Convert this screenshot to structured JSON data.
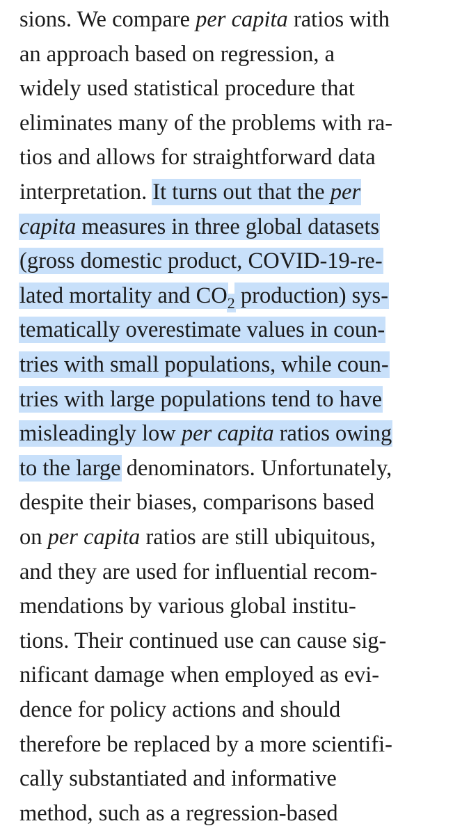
{
  "document": {
    "lines": [
      {
        "segments": [
          {
            "text": "sions. We compare "
          },
          {
            "text": "per capita",
            "italic": true
          },
          {
            "text": " ratios with"
          }
        ]
      },
      {
        "segments": [
          {
            "text": "an approach based on regression, a"
          }
        ]
      },
      {
        "segments": [
          {
            "text": "widely used statistical procedure that"
          }
        ]
      },
      {
        "segments": [
          {
            "text": "eliminates many of the problems with ra-"
          }
        ]
      },
      {
        "segments": [
          {
            "text": "tios and allows for straightforward data"
          }
        ]
      },
      {
        "segments": [
          {
            "text": "interpretation. "
          },
          {
            "text": "It turns out that the ",
            "hl": true
          },
          {
            "text": "per",
            "italic": true,
            "hl": true
          }
        ]
      },
      {
        "segments": [
          {
            "text": "capita",
            "italic": true,
            "hl": true
          },
          {
            "text": " measures in three global datasets",
            "hl": true
          }
        ]
      },
      {
        "segments": [
          {
            "text": "(gross domestic product, COVID-19-re-",
            "hl": true
          }
        ]
      },
      {
        "segments": [
          {
            "text": "lated mortality and CO",
            "hl": true
          },
          {
            "text": "2",
            "sub": true,
            "hl": true
          },
          {
            "text": " production) sys-",
            "hl": true
          }
        ]
      },
      {
        "segments": [
          {
            "text": "tematically overestimate values in coun-",
            "hl": true
          }
        ]
      },
      {
        "segments": [
          {
            "text": "tries with small populations, while coun-",
            "hl": true
          }
        ]
      },
      {
        "segments": [
          {
            "text": "tries with large populations tend to have",
            "hl": true
          }
        ]
      },
      {
        "segments": [
          {
            "text": "misleadingly low ",
            "hl": true
          },
          {
            "text": "per capita",
            "italic": true,
            "hl": true
          },
          {
            "text": " ratios owing",
            "hl": true
          }
        ]
      },
      {
        "segments": [
          {
            "text": "to the large",
            "hl": true
          },
          {
            "text": " denominators. Unfortunately,"
          }
        ]
      },
      {
        "segments": [
          {
            "text": "despite their biases, comparisons based"
          }
        ]
      },
      {
        "segments": [
          {
            "text": "on "
          },
          {
            "text": "per capita",
            "italic": true
          },
          {
            "text": " ratios are still ubiquitous,"
          }
        ]
      },
      {
        "segments": [
          {
            "text": "and they are used for influential recom-"
          }
        ]
      },
      {
        "segments": [
          {
            "text": "mendations by various global institu-"
          }
        ]
      },
      {
        "segments": [
          {
            "text": "tions. Their continued use can cause sig-"
          }
        ]
      },
      {
        "segments": [
          {
            "text": "nificant damage when employed as evi-"
          }
        ]
      },
      {
        "segments": [
          {
            "text": "dence for policy actions and should"
          }
        ]
      },
      {
        "segments": [
          {
            "text": "therefore be replaced by a more scientifi-"
          }
        ]
      },
      {
        "segments": [
          {
            "text": "cally substantiated and informative"
          }
        ]
      },
      {
        "segments": [
          {
            "text": "method, such as a regression-based"
          }
        ]
      }
    ]
  },
  "colors": {
    "text": "#1b1b1b",
    "highlight": "#c8e0fa",
    "background": "#ffffff"
  }
}
